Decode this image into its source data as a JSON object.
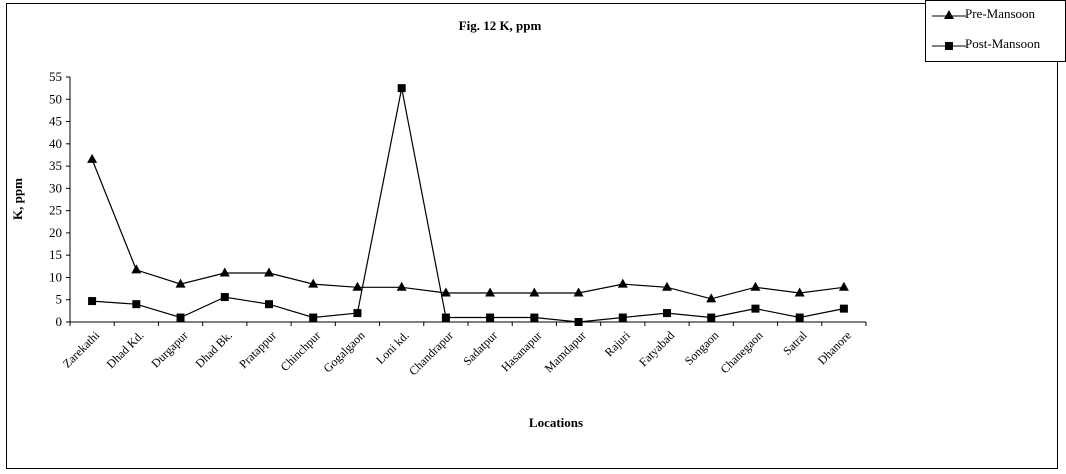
{
  "chart_data": {
    "type": "line",
    "title": "Fig. 12 K, ppm",
    "xlabel": "Locations",
    "ylabel": "K,  ppm",
    "ylim": [
      0,
      55
    ],
    "yticks": [
      0,
      5,
      10,
      15,
      20,
      25,
      30,
      35,
      40,
      45,
      50,
      55
    ],
    "grid": false,
    "legend_position": "top-right",
    "categories": [
      "Zarekathi",
      "Dhad Kd.",
      "Durgapur",
      "Dhad Bk.",
      "Pratappur",
      "Chinchpur",
      "Gogalgaon",
      "Loni kd.",
      "Chandrapur",
      "Sadatpur",
      "Hasanapur",
      "Mamdapur",
      "Rajuri",
      "Fatyabad",
      "Songaon",
      "Chanegaon",
      "Satral",
      "Dhanore"
    ],
    "series": [
      {
        "name": "Pre-Mansoon",
        "marker": "triangle",
        "color": "#000000",
        "values": [
          36.5,
          11.7,
          8.5,
          11,
          11,
          8.5,
          7.8,
          7.8,
          6.5,
          6.5,
          6.5,
          6.5,
          8.5,
          7.8,
          5.2,
          7.8,
          6.5,
          7.8
        ]
      },
      {
        "name": "Post-Mansoon",
        "marker": "square",
        "color": "#000000",
        "values": [
          4.7,
          4,
          1,
          5.6,
          4,
          1,
          2,
          52.5,
          1,
          1,
          1,
          0,
          1,
          2,
          1,
          3,
          1,
          3
        ]
      }
    ]
  }
}
